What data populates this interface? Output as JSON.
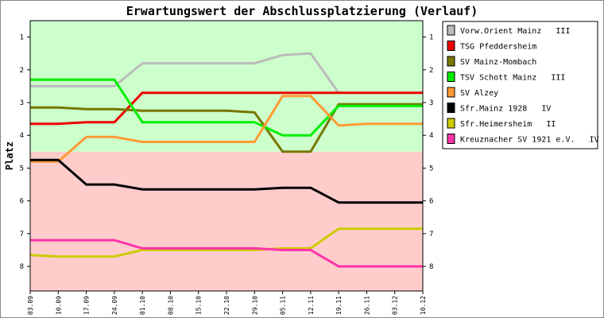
{
  "chart_data": {
    "type": "line",
    "title": "Erwartungswert der Abschlussplatzierung (Verlauf)",
    "ylabel": "Platz",
    "xlabel": "",
    "ylim": [
      0.5,
      8.75
    ],
    "y_inverted": true,
    "yticks": [
      1,
      2,
      3,
      4,
      5,
      6,
      7,
      8
    ],
    "zone_boundary": 4.5,
    "zones": [
      {
        "from": 0.5,
        "to": 4.5,
        "color": "#ccffcc"
      },
      {
        "from": 4.5,
        "to": 8.75,
        "color": "#ffcccc"
      }
    ],
    "x": [
      "03.09",
      "10.09",
      "17.09",
      "24.09",
      "01.10",
      "08.10",
      "15.10",
      "22.10",
      "29.10",
      "05.11",
      "12.11",
      "19.11",
      "26.11",
      "03.12",
      "10.12"
    ],
    "legend_position": "right",
    "series": [
      {
        "name": "Vorw.Orient Mainz   III",
        "color": "#bbbbbb",
        "values": [
          2.5,
          2.5,
          2.5,
          2.5,
          1.8,
          1.8,
          1.8,
          1.8,
          1.8,
          1.55,
          1.5,
          2.7,
          null,
          null,
          null
        ]
      },
      {
        "name": "TSG Pfeddersheim",
        "color": "#ee0000",
        "values": [
          3.65,
          3.65,
          3.6,
          3.6,
          2.7,
          2.7,
          2.7,
          2.7,
          2.7,
          2.7,
          2.7,
          2.7,
          2.7,
          2.7,
          2.7
        ]
      },
      {
        "name": "SV Mainz-Mombach",
        "color": "#777700",
        "values": [
          3.15,
          3.15,
          3.2,
          3.2,
          3.25,
          3.25,
          3.25,
          3.25,
          3.3,
          4.5,
          4.5,
          3.05,
          3.05,
          3.05,
          3.05
        ]
      },
      {
        "name": "TSV Schott Mainz   III",
        "color": "#00ee00",
        "values": [
          2.3,
          2.3,
          2.3,
          2.3,
          3.6,
          3.6,
          3.6,
          3.6,
          3.6,
          4.0,
          4.0,
          3.1,
          3.1,
          3.1,
          3.1
        ]
      },
      {
        "name": "SV Alzey",
        "color": "#ff9933",
        "values": [
          4.8,
          4.8,
          4.05,
          4.05,
          4.2,
          4.2,
          4.2,
          4.2,
          4.2,
          2.8,
          2.8,
          3.7,
          3.65,
          3.65,
          3.65
        ]
      },
      {
        "name": "Sfr.Mainz 1928   IV",
        "color": "#000000",
        "values": [
          4.75,
          4.75,
          5.5,
          5.5,
          5.65,
          5.65,
          5.65,
          5.65,
          5.65,
          5.6,
          5.6,
          6.05,
          6.05,
          6.05,
          6.05
        ]
      },
      {
        "name": "Sfr.Heimersheim   II",
        "color": "#cccc00",
        "values": [
          7.65,
          7.7,
          7.7,
          7.7,
          7.5,
          7.5,
          7.5,
          7.5,
          7.5,
          7.45,
          7.45,
          6.85,
          6.85,
          6.85,
          6.85
        ]
      },
      {
        "name": "Kreuznacher SV 1921 e.V.   IV",
        "color": "#ff33aa",
        "values": [
          7.2,
          7.2,
          7.2,
          7.2,
          7.45,
          7.45,
          7.45,
          7.45,
          7.45,
          7.5,
          7.5,
          8.0,
          8.0,
          8.0,
          8.0
        ]
      }
    ]
  }
}
